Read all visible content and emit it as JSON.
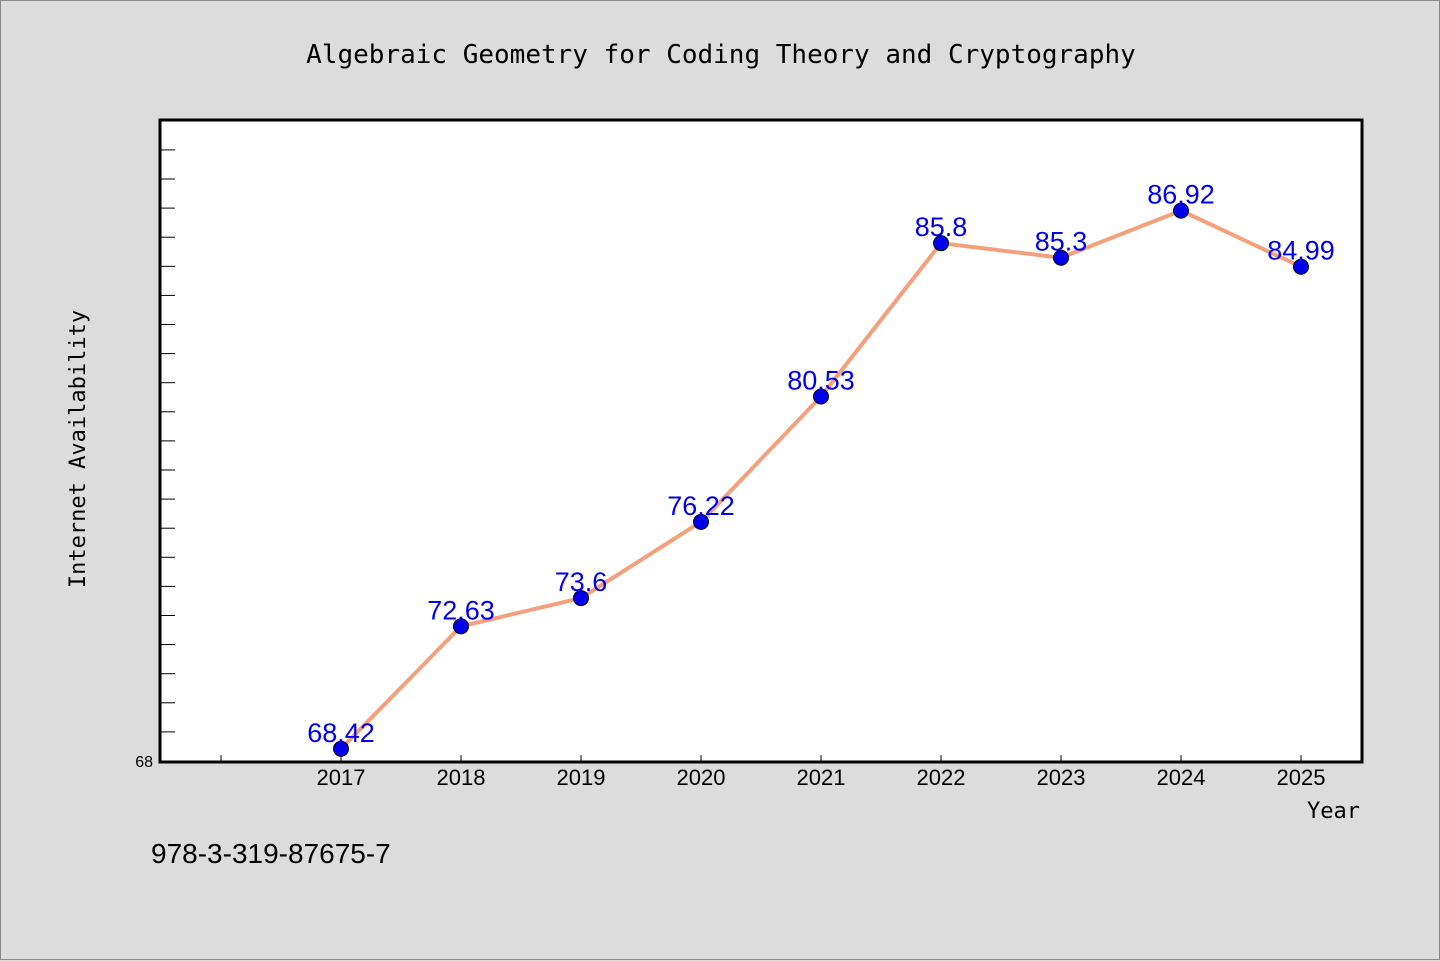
{
  "chart_data": {
    "type": "line",
    "title": "Algebraic Geometry for Coding Theory and Cryptography",
    "xlabel": "Year",
    "ylabel": "Internet Availability",
    "categories": [
      "2017",
      "2018",
      "2019",
      "2020",
      "2021",
      "2022",
      "2023",
      "2024",
      "2025"
    ],
    "series": [
      {
        "values": [
          68.42,
          72.63,
          73.6,
          76.22,
          80.53,
          85.8,
          85.3,
          86.92,
          84.99
        ],
        "labels": [
          "68.42",
          "72.63",
          "73.6",
          "76.22",
          "80.53",
          "85.8",
          "85.3",
          "86.92",
          "84.99"
        ]
      }
    ],
    "ylim": [
      68,
      90
    ],
    "ytick_labels": [
      "68"
    ],
    "grid": false,
    "line_color": "#f4a07c",
    "marker_color": "#0000ee",
    "label_color": "#0000ee"
  },
  "footer": {
    "isbn": "978-3-319-87675-7"
  }
}
